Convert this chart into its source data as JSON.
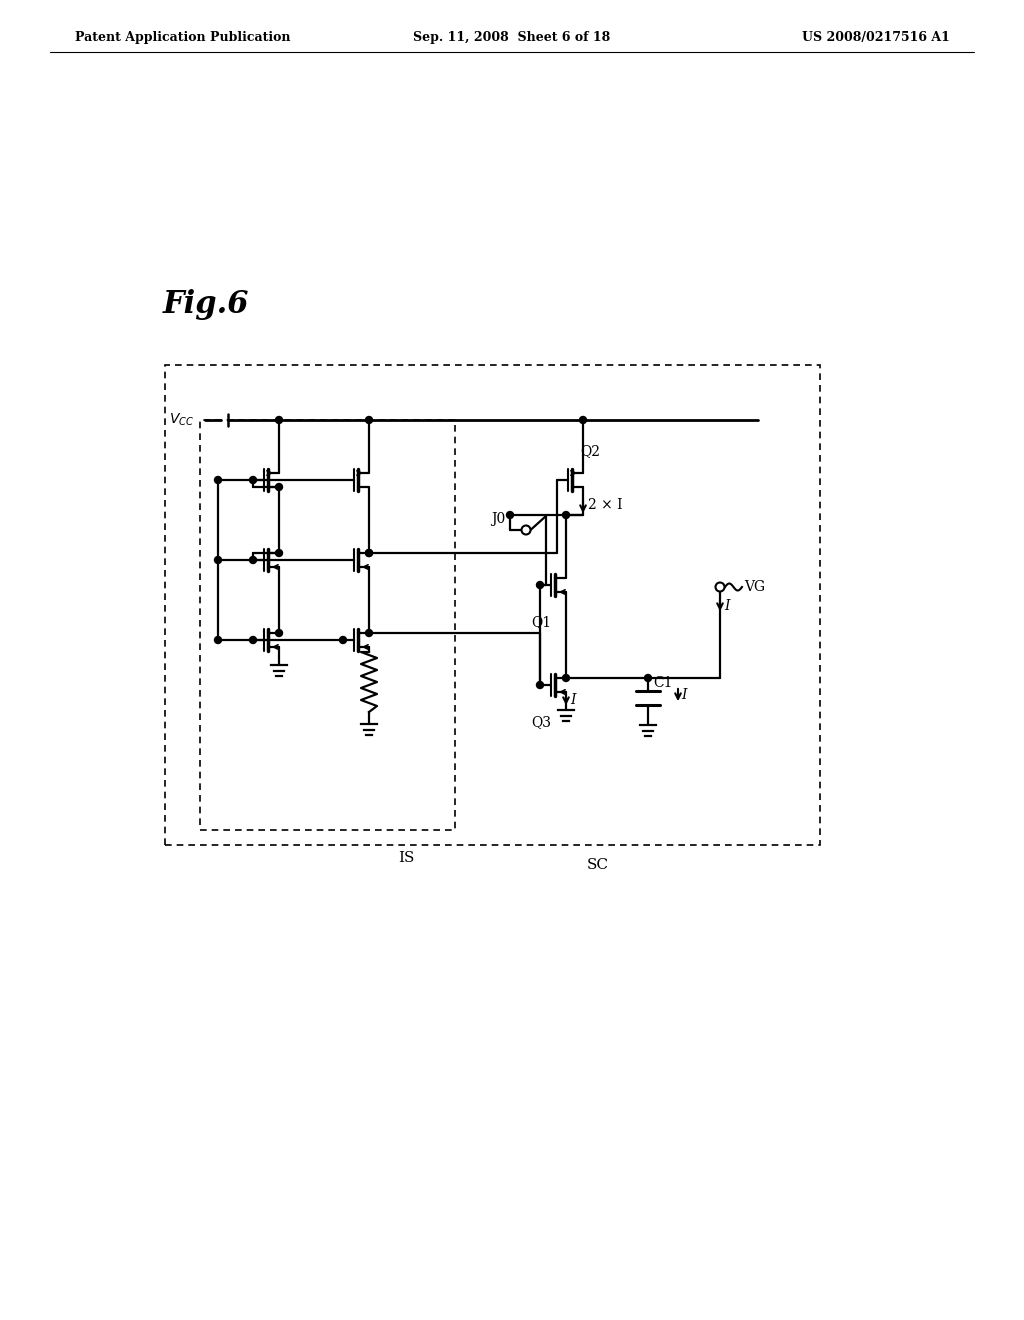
{
  "bg_color": "#ffffff",
  "header_left": "Patent Application Publication",
  "header_mid": "Sep. 11, 2008  Sheet 6 of 18",
  "header_right": "US 2008/0217516 A1",
  "fig_label": "Fig.6"
}
